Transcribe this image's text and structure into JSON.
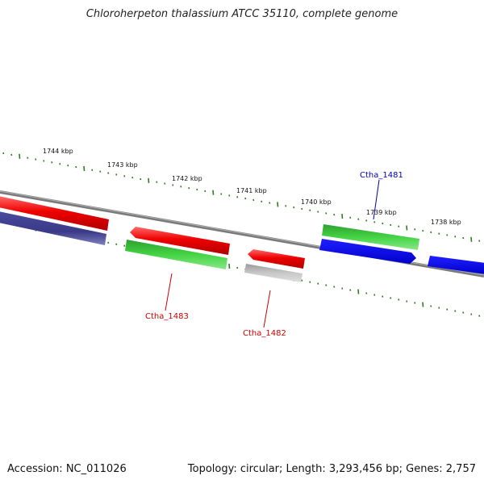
{
  "title": "Chloroherpeton thalassium ATCC 35110, complete genome",
  "footer": {
    "accession": "Accession: NC_011026",
    "summary": "Topology: circular; Length: 3,293,456 bp; Genes: 2,757"
  },
  "colors": {
    "backbone": "#808080",
    "tick": "#2e7d1e",
    "red_gene": "#ee0000",
    "green_gene": "#33cc33",
    "blue_gene": "#0000ee",
    "navy_gene": "#3a3a88",
    "grey_gene": "#b8b8b8",
    "label_red": "#cc0000",
    "label_blue": "#0000aa"
  },
  "ticks": [
    "1744 kbp",
    "1743 kbp",
    "1742 kbp",
    "1741 kbp",
    "1740 kbp",
    "1739 kbp",
    "1738 kbp"
  ],
  "gene_labels": {
    "ctha_1481": "Ctha_1481",
    "ctha_1483": "Ctha_1483",
    "ctha_1482": "Ctha_1482"
  }
}
